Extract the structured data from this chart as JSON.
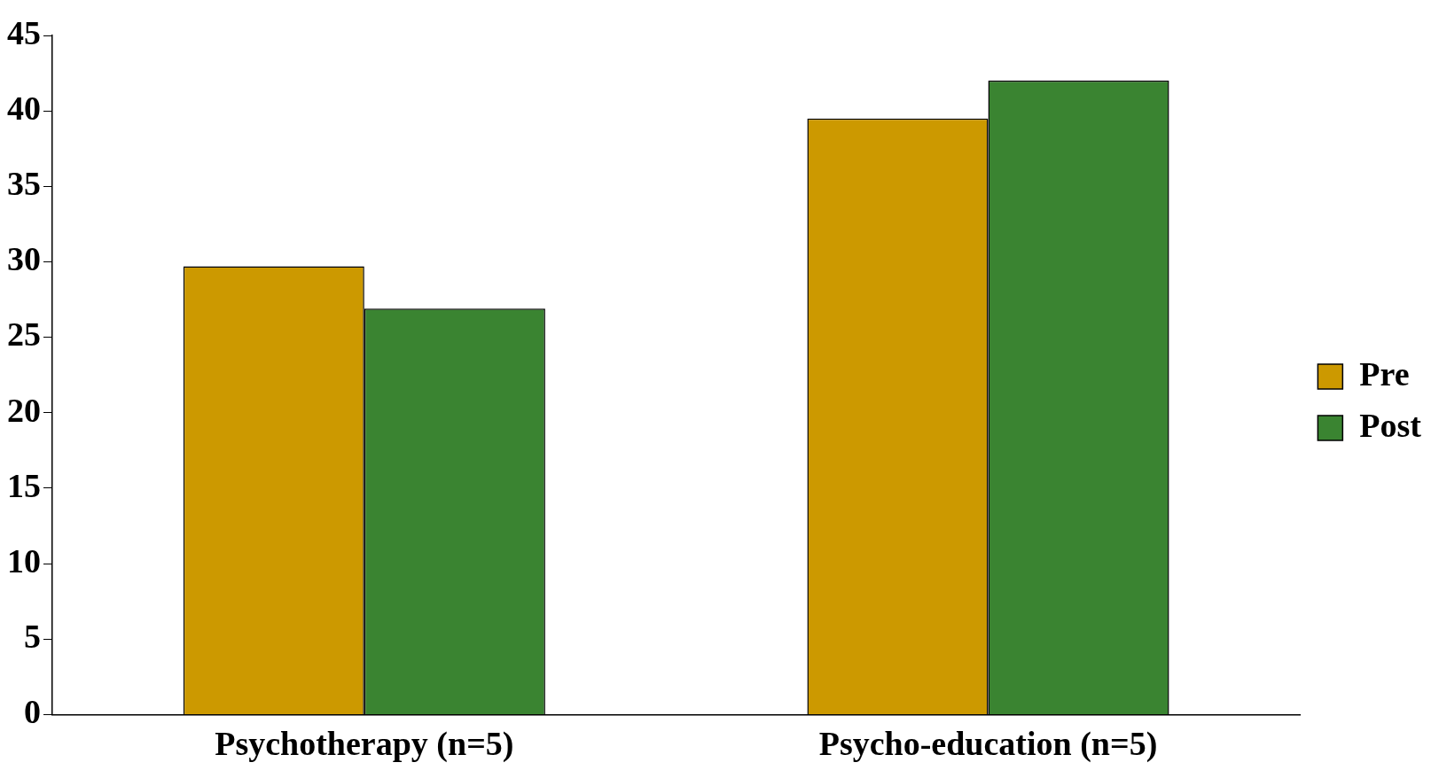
{
  "chart_data": {
    "type": "bar",
    "categories": [
      "Psychotherapy (n=5)",
      "Psycho-education (n=5)"
    ],
    "series": [
      {
        "name": "Pre",
        "color": "#cc9900",
        "values": [
          29.7,
          39.5
        ]
      },
      {
        "name": "Post",
        "color": "#3a8431",
        "values": [
          26.9,
          42.0
        ]
      }
    ],
    "ylim": [
      0,
      45
    ],
    "yticks": [
      0,
      5,
      10,
      15,
      20,
      25,
      30,
      35,
      40,
      45
    ],
    "grid": false,
    "legend": "right"
  }
}
